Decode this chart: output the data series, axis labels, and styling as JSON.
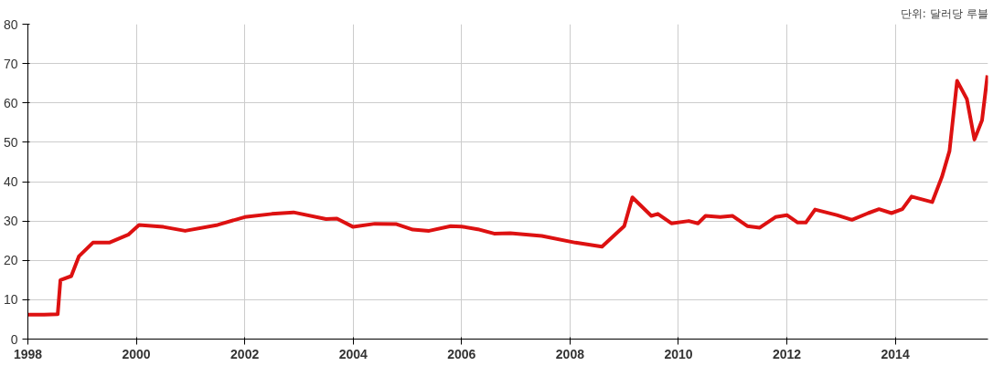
{
  "chart_data": {
    "type": "line",
    "annotations": [
      "단위: 달러당 루블"
    ],
    "x": [
      1998.0,
      1998.3,
      1998.55,
      1998.6,
      1998.8,
      1998.94,
      1999.2,
      1999.5,
      1999.85,
      2000.05,
      2000.5,
      2000.9,
      2001.5,
      2002.0,
      2002.5,
      2002.9,
      2003.5,
      2003.7,
      2004.0,
      2004.4,
      2004.8,
      2005.1,
      2005.4,
      2005.8,
      2006.0,
      2006.3,
      2006.6,
      2006.9,
      2007.48,
      2008.1,
      2008.59,
      2009.0,
      2009.15,
      2009.5,
      2009.62,
      2009.87,
      2010.19,
      2010.36,
      2010.5,
      2010.77,
      2011.0,
      2011.27,
      2011.5,
      2011.79,
      2012.0,
      2012.2,
      2012.35,
      2012.52,
      2012.92,
      2013.2,
      2013.5,
      2013.7,
      2013.93,
      2014.13,
      2014.3,
      2014.68,
      2014.86,
      2015.0,
      2015.14,
      2015.32,
      2015.46,
      2015.6,
      2015.7
    ],
    "series": [
      {
        "color": "#dd1111",
        "values": [
          6.2,
          6.2,
          6.3,
          15,
          16,
          21,
          24.5,
          24.5,
          26.5,
          29,
          28.5,
          27.5,
          29,
          31,
          31.8,
          32.2,
          30.5,
          30.6,
          28.5,
          29.3,
          29.2,
          27.8,
          27.5,
          28.7,
          28.6,
          27.9,
          26.8,
          26.9,
          26.2,
          24.5,
          23.5,
          28.7,
          36,
          31.3,
          31.8,
          29.4,
          30,
          29.4,
          31.3,
          31,
          31.3,
          28.7,
          28.3,
          31,
          31.5,
          29.6,
          29.6,
          32.9,
          31.5,
          30.3,
          32,
          33,
          32,
          33,
          36.2,
          34.8,
          41.2,
          47.8,
          65.6,
          61,
          50.7,
          55.6,
          67
        ]
      }
    ],
    "xlim": [
      1998,
      2015.71
    ],
    "xticks": [
      1998,
      2000,
      2002,
      2004,
      2006,
      2008,
      2010,
      2012,
      2014
    ],
    "ylim": [
      0,
      80
    ],
    "yticks": [
      0,
      10,
      20,
      30,
      40,
      50,
      60,
      70,
      80
    ],
    "grid": true,
    "marker": "none",
    "line_style": "solid"
  }
}
